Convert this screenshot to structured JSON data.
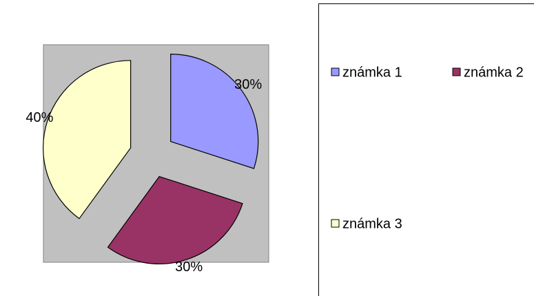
{
  "chart_data": {
    "type": "pie",
    "categories": [
      "známka 1",
      "známka 2",
      "známka 3"
    ],
    "values": [
      30,
      30,
      40
    ],
    "value_labels": [
      "30%",
      "30%",
      "40%"
    ],
    "colors": [
      "#9999ff",
      "#993366",
      "#ffffcc"
    ],
    "exploded": true,
    "legend": "right"
  }
}
